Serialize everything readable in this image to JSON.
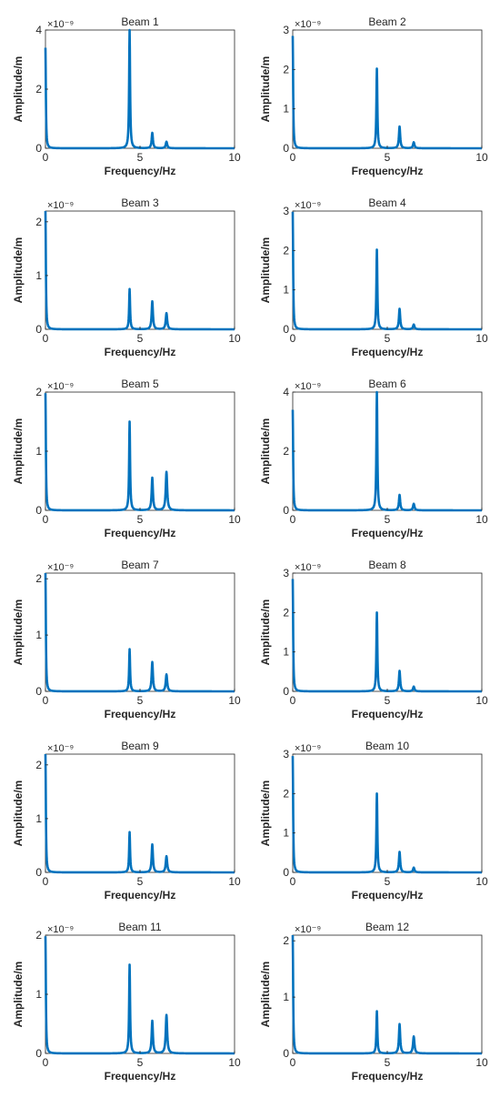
{
  "figure": {
    "colors": {
      "series": "#0072BD",
      "axis": "#262626",
      "background": "#ffffff"
    }
  },
  "chart_data": [
    {
      "type": "line",
      "title": "Beam 1",
      "xlabel": "Frequency/Hz",
      "ylabel": "Amplitude/m",
      "xlim": [
        0,
        10
      ],
      "ylim": [
        0,
        4
      ],
      "yticks": [
        0,
        2,
        4
      ],
      "xticks": [
        0,
        5,
        10
      ],
      "exponent": "×10⁻⁹",
      "x": [
        0,
        4.45,
        5.65,
        6.4
      ],
      "values": [
        3.4,
        4.0,
        0.52,
        0.22
      ]
    },
    {
      "type": "line",
      "title": "Beam 2",
      "xlabel": "Frequency/Hz",
      "ylabel": "Amplitude/m",
      "xlim": [
        0,
        10
      ],
      "ylim": [
        0,
        3
      ],
      "yticks": [
        0,
        1,
        2,
        3
      ],
      "xticks": [
        0,
        5,
        10
      ],
      "exponent": "×10⁻⁹",
      "x": [
        0,
        4.45,
        5.65,
        6.4
      ],
      "values": [
        2.85,
        2.02,
        0.55,
        0.15
      ]
    },
    {
      "type": "line",
      "title": "Beam 3",
      "xlabel": "Frequency/Hz",
      "ylabel": "Amplitude/m",
      "xlim": [
        0,
        10
      ],
      "ylim": [
        0,
        2.2
      ],
      "yticks": [
        0,
        1,
        2
      ],
      "xticks": [
        0,
        5,
        10
      ],
      "exponent": "×10⁻⁹",
      "x": [
        0,
        4.45,
        5.65,
        6.4
      ],
      "values": [
        2.2,
        0.75,
        0.52,
        0.3
      ]
    },
    {
      "type": "line",
      "title": "Beam 4",
      "xlabel": "Frequency/Hz",
      "ylabel": "Amplitude/m",
      "xlim": [
        0,
        10
      ],
      "ylim": [
        0,
        3
      ],
      "yticks": [
        0,
        1,
        2,
        3
      ],
      "xticks": [
        0,
        5,
        10
      ],
      "exponent": "×10⁻⁹",
      "x": [
        0,
        4.45,
        5.65,
        6.4
      ],
      "values": [
        2.98,
        2.02,
        0.52,
        0.12
      ]
    },
    {
      "type": "line",
      "title": "Beam 5",
      "xlabel": "Frequency/Hz",
      "ylabel": "Amplitude/m",
      "xlim": [
        0,
        10
      ],
      "ylim": [
        0,
        2
      ],
      "yticks": [
        0,
        1,
        2
      ],
      "xticks": [
        0,
        5,
        10
      ],
      "exponent": "×10⁻⁹",
      "x": [
        0,
        4.45,
        5.65,
        6.4
      ],
      "values": [
        1.98,
        1.5,
        0.55,
        0.65
      ]
    },
    {
      "type": "line",
      "title": "Beam 6",
      "xlabel": "Frequency/Hz",
      "ylabel": "Amplitude/m",
      "xlim": [
        0,
        10
      ],
      "ylim": [
        0,
        4
      ],
      "yticks": [
        0,
        2,
        4
      ],
      "xticks": [
        0,
        5,
        10
      ],
      "exponent": "×10⁻⁹",
      "x": [
        0,
        4.45,
        5.65,
        6.4
      ],
      "values": [
        3.4,
        4.0,
        0.52,
        0.22
      ]
    },
    {
      "type": "line",
      "title": "Beam 7",
      "xlabel": "Frequency/Hz",
      "ylabel": "Amplitude/m",
      "xlim": [
        0,
        10
      ],
      "ylim": [
        0,
        2.1
      ],
      "yticks": [
        0,
        1,
        2
      ],
      "xticks": [
        0,
        5,
        10
      ],
      "exponent": "×10⁻⁹",
      "x": [
        0,
        4.45,
        5.65,
        6.4
      ],
      "values": [
        2.1,
        0.75,
        0.52,
        0.3
      ]
    },
    {
      "type": "line",
      "title": "Beam 8",
      "xlabel": "Frequency/Hz",
      "ylabel": "Amplitude/m",
      "xlim": [
        0,
        10
      ],
      "ylim": [
        0,
        3
      ],
      "yticks": [
        0,
        1,
        2,
        3
      ],
      "xticks": [
        0,
        5,
        10
      ],
      "exponent": "×10⁻⁹",
      "x": [
        0,
        4.45,
        5.65,
        6.4
      ],
      "values": [
        2.85,
        2.0,
        0.52,
        0.12
      ]
    },
    {
      "type": "line",
      "title": "Beam 9",
      "xlabel": "Frequency/Hz",
      "ylabel": "Amplitude/m",
      "xlim": [
        0,
        10
      ],
      "ylim": [
        0,
        2.2
      ],
      "yticks": [
        0,
        1,
        2
      ],
      "xticks": [
        0,
        5,
        10
      ],
      "exponent": "×10⁻⁹",
      "x": [
        0,
        4.45,
        5.65,
        6.4
      ],
      "values": [
        2.2,
        0.75,
        0.52,
        0.3
      ]
    },
    {
      "type": "line",
      "title": "Beam 10",
      "xlabel": "Frequency/Hz",
      "ylabel": "Amplitude/m",
      "xlim": [
        0,
        10
      ],
      "ylim": [
        0,
        3
      ],
      "yticks": [
        0,
        1,
        2,
        3
      ],
      "xticks": [
        0,
        5,
        10
      ],
      "exponent": "×10⁻⁹",
      "x": [
        0,
        4.45,
        5.65,
        6.4
      ],
      "values": [
        2.95,
        2.0,
        0.52,
        0.12
      ]
    },
    {
      "type": "line",
      "title": "Beam 11",
      "xlabel": "Frequency/Hz",
      "ylabel": "Amplitude/m",
      "xlim": [
        0,
        10
      ],
      "ylim": [
        0,
        2
      ],
      "yticks": [
        0,
        1,
        2
      ],
      "xticks": [
        0,
        5,
        10
      ],
      "exponent": "×10⁻⁹",
      "x": [
        0,
        4.45,
        5.65,
        6.4
      ],
      "values": [
        1.98,
        1.5,
        0.55,
        0.65
      ]
    },
    {
      "type": "line",
      "title": "Beam 12",
      "xlabel": "Frequency/Hz",
      "ylabel": "Amplitude/m",
      "xlim": [
        0,
        10
      ],
      "ylim": [
        0,
        2.1
      ],
      "yticks": [
        0,
        1,
        2
      ],
      "xticks": [
        0,
        5,
        10
      ],
      "exponent": "×10⁻⁹",
      "x": [
        0,
        4.45,
        5.65,
        6.4
      ],
      "values": [
        2.1,
        0.75,
        0.52,
        0.3
      ]
    }
  ]
}
